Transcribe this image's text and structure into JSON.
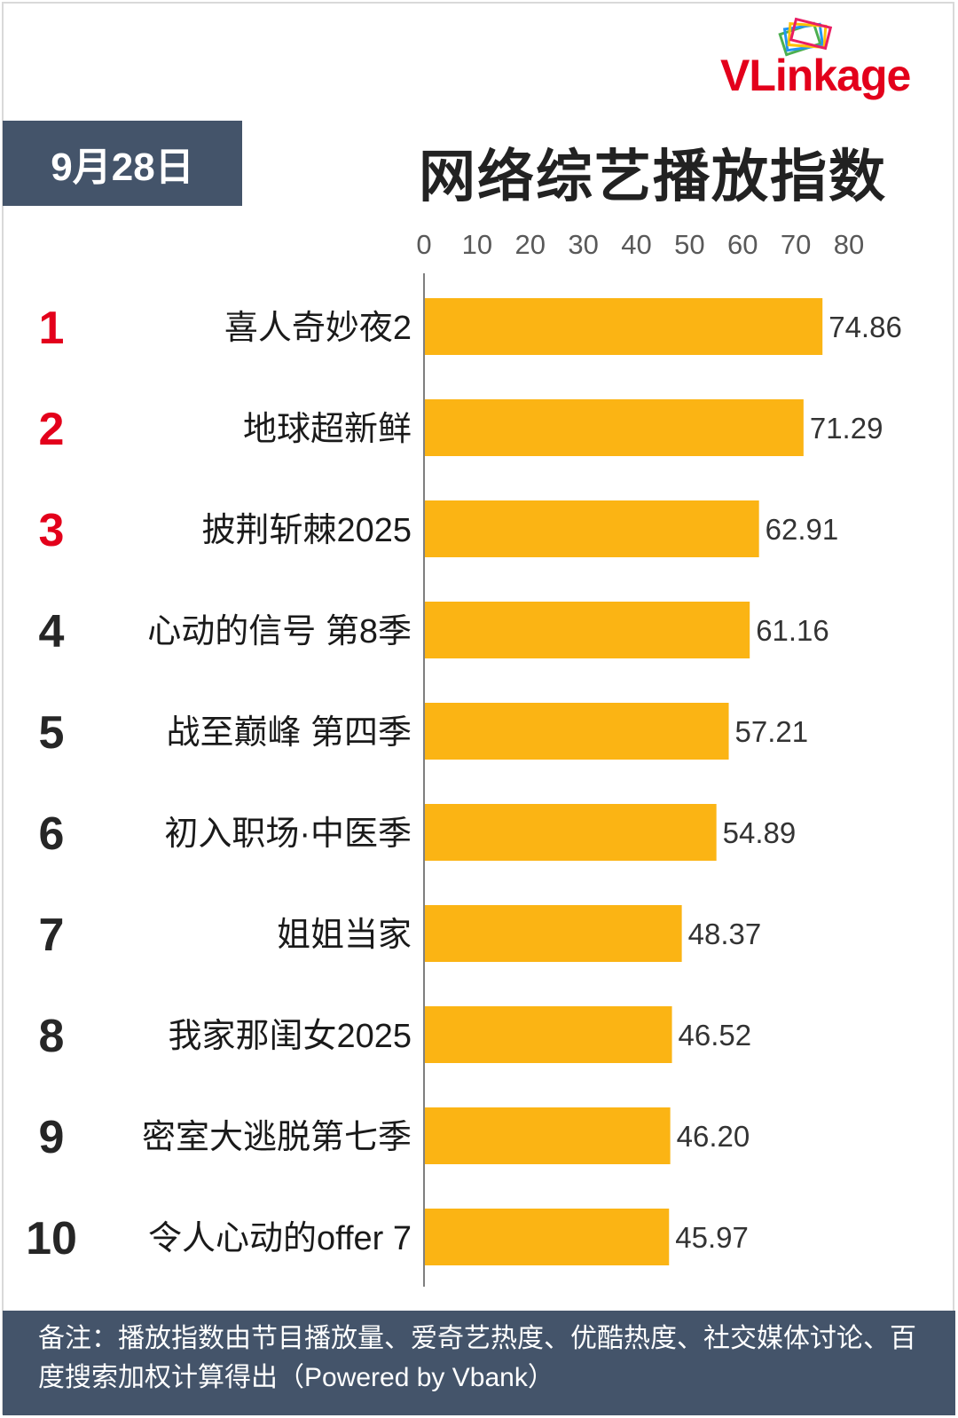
{
  "logo": {
    "text": "VLinkage"
  },
  "date": "9月28日",
  "title": "网络综艺播放指数",
  "colors": {
    "bar": "#fbb414",
    "top3_rank": "#e3001b",
    "rank": "#262626",
    "header_bg": "#44546a"
  },
  "chart_data": {
    "type": "bar",
    "orientation": "horizontal",
    "title": "网络综艺播放指数",
    "xlim": [
      0,
      80
    ],
    "x_ticks": [
      "0",
      "10",
      "20",
      "30",
      "40",
      "50",
      "60",
      "70",
      "80"
    ],
    "x_tick_values": [
      0,
      10,
      20,
      30,
      40,
      50,
      60,
      70,
      80
    ],
    "axis_position": "top",
    "grid": false,
    "ranks": [
      "1",
      "2",
      "3",
      "4",
      "5",
      "6",
      "7",
      "8",
      "9",
      "10"
    ],
    "categories": [
      "喜人奇妙夜2",
      "地球超新鲜",
      "披荆斩棘2025",
      "心动的信号 第8季",
      "战至巅峰 第四季",
      "初入职场·中医季",
      "姐姐当家",
      "我家那闺女2025",
      "密室大逃脱第七季",
      "令人心动的offer 7"
    ],
    "values": [
      74.86,
      71.29,
      62.91,
      61.16,
      57.21,
      54.89,
      48.37,
      46.52,
      46.2,
      45.97
    ],
    "value_labels": [
      "74.86",
      "71.29",
      "62.91",
      "61.16",
      "57.21",
      "54.89",
      "48.37",
      "46.52",
      "46.20",
      "45.97"
    ]
  },
  "footer": {
    "note": "备注：播放指数由节目播放量、爱奇艺热度、优酷热度、社交媒体讨论、百度搜索加权计算得出（Powered by Vbank）"
  }
}
